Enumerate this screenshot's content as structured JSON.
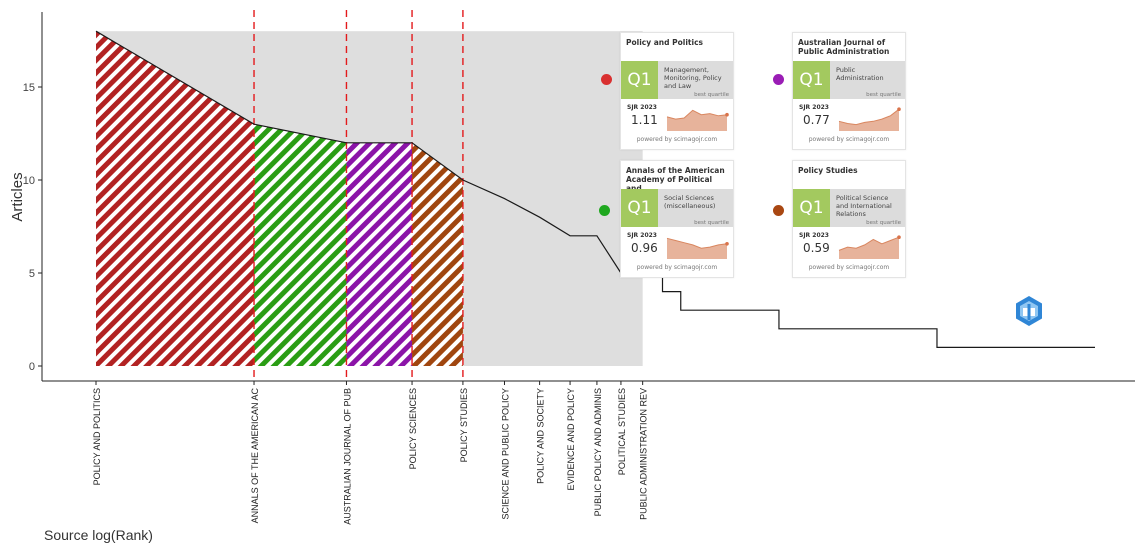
{
  "chart_data": {
    "type": "line",
    "title": "",
    "xlabel": "Source log(Rank)",
    "ylabel": "Articles",
    "ylim": [
      0,
      18
    ],
    "yticks": [
      0,
      5,
      10,
      15
    ],
    "grid": false,
    "sources": [
      {
        "name": "POLICY AND POLITICS",
        "rank": 1,
        "articles": 18
      },
      {
        "name": "ANNALS OF THE AMERICAN AC",
        "rank": 2,
        "articles": 13
      },
      {
        "name": "AUSTRALIAN JOURNAL OF PUB",
        "rank": 3,
        "articles": 12
      },
      {
        "name": "POLICY SCIENCES",
        "rank": 4,
        "articles": 12
      },
      {
        "name": "POLICY STUDIES",
        "rank": 5,
        "articles": 10
      },
      {
        "name": "SCIENCE AND PUBLIC POLICY",
        "rank": 6,
        "articles": 9
      },
      {
        "name": "POLICY AND SOCIETY",
        "rank": 7,
        "articles": 8
      },
      {
        "name": "EVIDENCE AND POLICY",
        "rank": 8,
        "articles": 7
      },
      {
        "name": "PUBLIC POLICY AND ADMINIS",
        "rank": 9,
        "articles": 7
      },
      {
        "name": "POLITICAL STUDIES",
        "rank": 10,
        "articles": 5
      },
      {
        "name": "PUBLIC ADMINISTRATION REV",
        "rank": 11,
        "articles": 5
      }
    ],
    "tail_steps": [
      {
        "rank": 12,
        "articles": 4
      },
      {
        "rank": 13,
        "articles": 3
      },
      {
        "rank": 20,
        "articles": 2
      },
      {
        "rank": 40,
        "articles": 1
      },
      {
        "rank": 80,
        "articles": 1
      }
    ],
    "highlight_zone": {
      "from_rank": 1,
      "to_rank": 11,
      "color": "#dedede"
    },
    "hatched_segments": [
      {
        "from_rank": 1,
        "to_rank": 2,
        "color": "#b22222"
      },
      {
        "from_rank": 2,
        "to_rank": 3,
        "color": "#2a9d14"
      },
      {
        "from_rank": 3,
        "to_rank": 4,
        "color": "#8b14a8"
      },
      {
        "from_rank": 4,
        "to_rank": 5,
        "color": "#a0460f"
      }
    ],
    "dashed_lines_at_rank": [
      2,
      3,
      4,
      5
    ],
    "dashed_color": "#e31a1c"
  },
  "cards": [
    {
      "title": "Policy and Politics",
      "q": "Q1",
      "category": "Management, Monitoring, Policy and Law",
      "best": "best quartile",
      "sjr_label": "SJR 2023",
      "sjr": "1.11",
      "footer": "powered by scimagojr.com",
      "dot_color": "#d93030",
      "spark": [
        0.55,
        0.45,
        0.5,
        0.85,
        0.65,
        0.7,
        0.6,
        0.65
      ]
    },
    {
      "title": "Australian Journal of Public Administration",
      "q": "Q1",
      "category": "Public Administration",
      "best": "best quartile",
      "sjr_label": "SJR 2023",
      "sjr": "0.77",
      "footer": "powered by scimagojr.com",
      "dot_color": "#9a1db5",
      "spark": [
        0.35,
        0.25,
        0.2,
        0.3,
        0.35,
        0.45,
        0.6,
        0.9
      ]
    },
    {
      "title": "Annals of the American Academy of Political and..",
      "q": "Q1",
      "category": "Social Sciences (miscellaneous)",
      "best": "best quartile",
      "sjr_label": "SJR 2023",
      "sjr": "0.96",
      "footer": "powered by scimagojr.com",
      "dot_color": "#1fa81f",
      "spark": [
        0.85,
        0.75,
        0.65,
        0.55,
        0.4,
        0.45,
        0.55,
        0.6
      ]
    },
    {
      "title": "Policy Studies",
      "q": "Q1",
      "category": "Political Science and International Relations",
      "best": "best quartile",
      "sjr_label": "SJR 2023",
      "sjr": "0.59",
      "footer": "powered by scimagojr.com",
      "dot_color": "#a94712",
      "spark": [
        0.3,
        0.45,
        0.4,
        0.55,
        0.8,
        0.6,
        0.75,
        0.9
      ]
    }
  ]
}
